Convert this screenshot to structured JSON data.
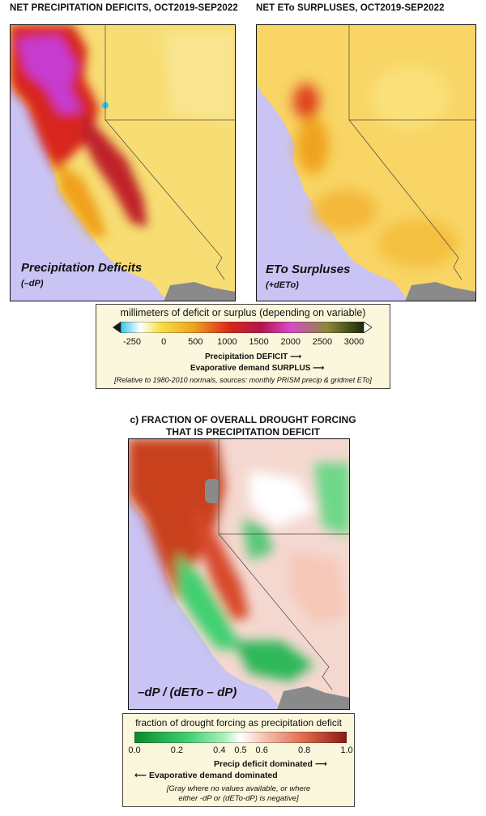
{
  "panel_a": {
    "title": "NET PRECIPITATION DEFICITS, OCT2019-SEP2022",
    "label": "Precipitation Deficits",
    "sublabel": "(–dP)"
  },
  "panel_b": {
    "title": "NET ETo SURPLUSES, OCT2019-SEP2022",
    "label": "ETo Surpluses",
    "sublabel": "(+dETo)"
  },
  "legend_top": {
    "title": "millimeters of deficit or surplus (depending on variable)",
    "ticks": [
      "-250",
      "0",
      "500",
      "1000",
      "1500",
      "2000",
      "2500",
      "3000"
    ],
    "arrow1": "Precipitation DEFICIT",
    "arrow2": "Evaporative demand SURPLUS",
    "note": "[Relative to 1980-2010 normals, sources: monthly PRISM precip & gridmet ETo]",
    "colors": [
      "#35c6e6",
      "#ffffff",
      "#f5e24a",
      "#f0a21e",
      "#d8261a",
      "#b3154e",
      "#d84bc9",
      "#8a8a3a",
      "#1a2a0a"
    ]
  },
  "panel_c": {
    "title_line1": "c) FRACTION OF OVERALL DROUGHT FORCING",
    "title_line2": "THAT IS PRECIPITATION DEFICIT",
    "label": "–dP / (dETo – dP)"
  },
  "legend_bottom": {
    "title": "fraction of drought forcing as precipitation deficit",
    "ticks": [
      "0.0",
      "0.2",
      "0.4",
      "0.5",
      "0.6",
      "0.8",
      "1.0"
    ],
    "arrow1": "Precip deficit dominated",
    "arrow2": "Evaporative demand dominated",
    "note_line1": "[Gray where no values available, or where",
    "note_line2": "either -dP or (dETo-dP) is negative]",
    "colors": [
      "#0d8a2a",
      "#3fd070",
      "#a8f0b8",
      "#ffffff",
      "#f6c8b8",
      "#e06a48",
      "#8a1a10"
    ]
  }
}
